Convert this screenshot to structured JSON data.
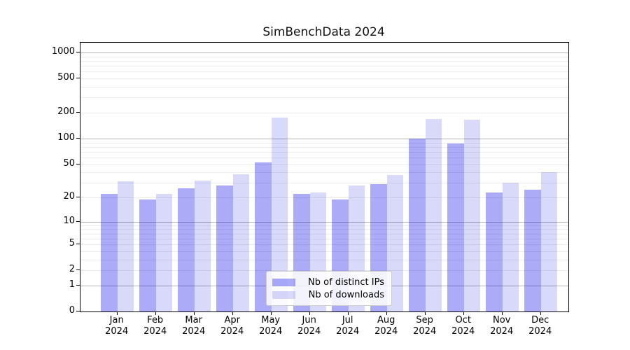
{
  "title": "SimBenchData 2024",
  "chart_data": {
    "type": "bar",
    "title": "SimBenchData 2024",
    "categories": [
      "Jan",
      "Feb",
      "Mar",
      "Apr",
      "May",
      "Jun",
      "Jul",
      "Aug",
      "Sep",
      "Oct",
      "Nov",
      "Dec"
    ],
    "year": "2024",
    "series": [
      {
        "name": "Nb of distinct IPs",
        "color": "#0000e8",
        "alpha": 0.33,
        "values": [
          22,
          19,
          26,
          28,
          52,
          22,
          19,
          29,
          100,
          87,
          23,
          25
        ]
      },
      {
        "name": "Nb of downloads",
        "color": "#0000dc",
        "alpha": 0.15,
        "values": [
          31,
          22,
          32,
          38,
          175,
          23,
          28,
          37,
          170,
          167,
          30,
          40
        ]
      }
    ],
    "xlabel": "",
    "ylabel": "",
    "yscale": "log10(1+v)",
    "y_ticks": [
      0,
      1,
      2,
      5,
      10,
      20,
      50,
      100,
      200,
      500,
      1000
    ],
    "ylim": [
      0,
      1290
    ],
    "grid": "horizontal major+minor",
    "legend_position": "lower center",
    "colors_rendered": {
      "distinct_ips_bar": "#aaaaf9",
      "downloads_bar": "#d9d9fa",
      "major_grid": "#b4b4b4",
      "minor_grid": "#ebebeb",
      "spine": "#000000"
    }
  }
}
